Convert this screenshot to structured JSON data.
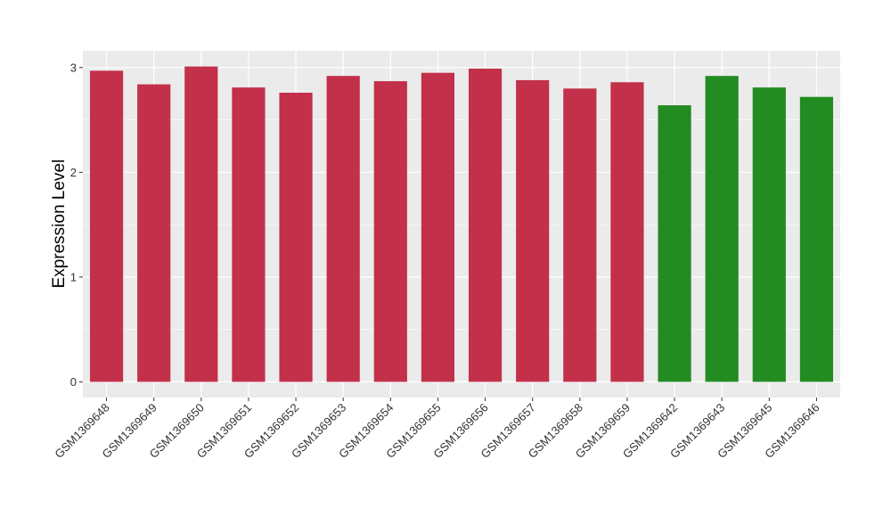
{
  "chart_data": {
    "type": "bar",
    "title": "",
    "xlabel": "",
    "ylabel": "Expression Level",
    "ylim": [
      -0.15,
      3.16
    ],
    "yticks": [
      0,
      1,
      2,
      3
    ],
    "grid": true,
    "legend": "none",
    "categories": [
      "GSM1369648",
      "GSM1369649",
      "GSM1369650",
      "GSM1369651",
      "GSM1369652",
      "GSM1369653",
      "GSM1369654",
      "GSM1369655",
      "GSM1369656",
      "GSM1369657",
      "GSM1369658",
      "GSM1369659",
      "GSM1369642",
      "GSM1369643",
      "GSM1369645",
      "GSM1369646"
    ],
    "values": [
      2.97,
      2.84,
      3.01,
      2.81,
      2.76,
      2.92,
      2.87,
      2.95,
      2.99,
      2.88,
      2.8,
      2.86,
      2.64,
      2.92,
      2.81,
      2.72
    ],
    "bar_colors": [
      "#C3304A",
      "#C3304A",
      "#C3304A",
      "#C3304A",
      "#C3304A",
      "#C3304A",
      "#C3304A",
      "#C3304A",
      "#C3304A",
      "#C3304A",
      "#C3304A",
      "#C3304A",
      "#228B22",
      "#228B22",
      "#228B22",
      "#228B22"
    ],
    "panel_background": "#EBEBEB",
    "grid_color": "#FFFFFF"
  }
}
